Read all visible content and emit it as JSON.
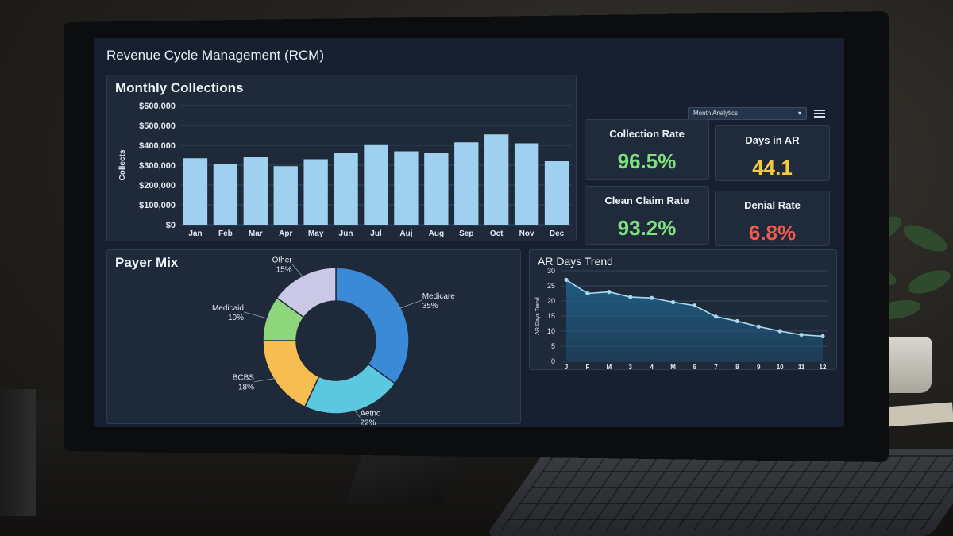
{
  "app": {
    "title": "Revenue Cycle Management (RCM)"
  },
  "toolbar": {
    "view_select": "Month Analytics",
    "menu_icon": "hamburger-menu-icon"
  },
  "collections": {
    "title": "Monthly Collections"
  },
  "kpis": [
    {
      "label": "Collection Rate",
      "value": "96.5%",
      "color": "#7fe07f"
    },
    {
      "label": "Days in AR",
      "value": "44.1",
      "color": "#f5c842"
    },
    {
      "label": "Clean Claim Rate",
      "value": "93.2%",
      "color": "#7fe07f"
    },
    {
      "label": "Denial Rate",
      "value": "6.8%",
      "color": "#f25a4f"
    }
  ],
  "payer": {
    "title": "Payer Mix"
  },
  "ar": {
    "title": "AR Days Trend"
  },
  "colors": {
    "bar": "#9fd0f0",
    "line": "#a9d8f3",
    "area": "#1f5d85"
  },
  "chart_data": [
    {
      "type": "bar",
      "title": "Monthly Collections",
      "ylabel": "Collects",
      "categories": [
        "Jan",
        "Feb",
        "Mar",
        "Apr",
        "May",
        "Jun",
        "Jul",
        "Auj",
        "Aug",
        "Sep",
        "Oct",
        "Nov",
        "Dec"
      ],
      "values": [
        335000,
        305000,
        340000,
        295000,
        330000,
        360000,
        405000,
        370000,
        360000,
        415000,
        455000,
        410000,
        320000
      ],
      "yticks": [
        "$0",
        "$100,000",
        "$200,000",
        "$300,000",
        "$400,000",
        "$500,000",
        "$600,000"
      ],
      "ylim": [
        0,
        600000
      ],
      "grid": true
    },
    {
      "type": "pie",
      "title": "Payer Mix",
      "slices": [
        {
          "label": "Medicare",
          "value": 35,
          "text": "35%",
          "color": "#3a8ad8"
        },
        {
          "label": "Aetno",
          "value": 22,
          "text": "22%",
          "color": "#5cc8e0"
        },
        {
          "label": "BCBS",
          "value": 18,
          "text": "18%",
          "color": "#f7bd50"
        },
        {
          "label": "Medicaid",
          "value": 10,
          "text": "10%",
          "color": "#8ed67c"
        },
        {
          "label": "Other",
          "value": 15,
          "text": "15%",
          "color": "#cbc7e6"
        }
      ]
    },
    {
      "type": "area",
      "title": "AR Days Trend",
      "ylabel": "AR Days Trend",
      "x": [
        "J",
        "F",
        "M",
        "3",
        "4",
        "M",
        "6",
        "7",
        "8",
        "9",
        "10",
        "11",
        "12"
      ],
      "values": [
        27,
        22.5,
        23,
        21.3,
        21,
        19.6,
        18.5,
        14.8,
        13.3,
        11.5,
        10,
        8.8,
        8.3
      ],
      "yticks": [
        "0",
        "5",
        "10",
        "15",
        "20",
        "25",
        "30"
      ],
      "ylim": [
        0,
        30
      ],
      "grid": true
    }
  ]
}
